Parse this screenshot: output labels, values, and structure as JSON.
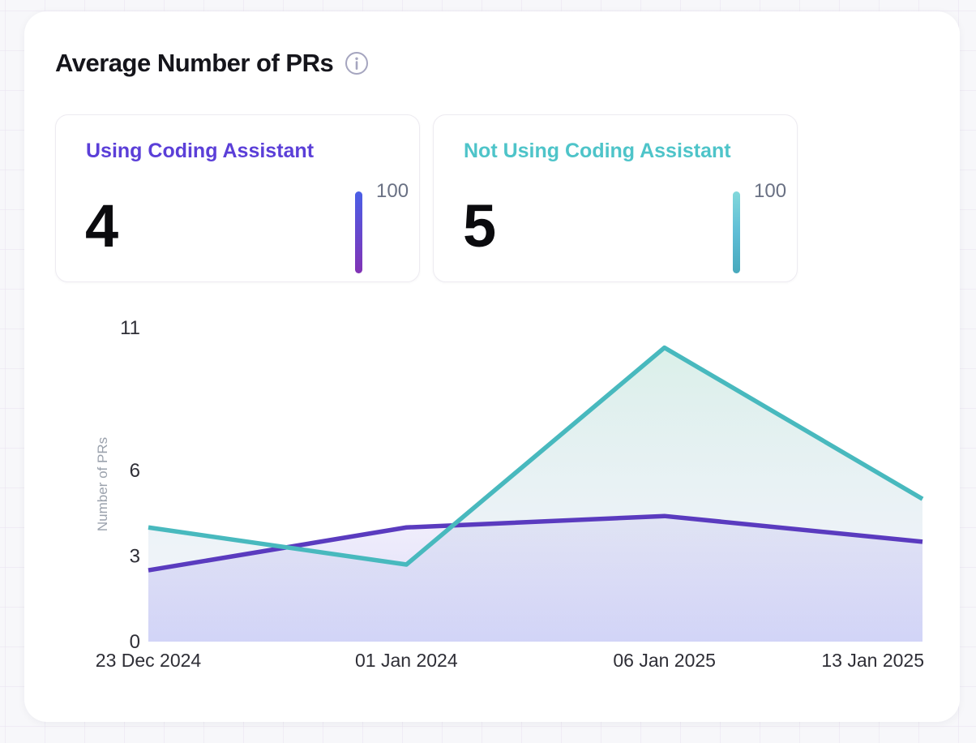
{
  "header": {
    "title": "Average Number of PRs"
  },
  "stats": [
    {
      "label": "Using Coding Assistant",
      "value": "4",
      "bar_label": "100",
      "accent": "#5B3FD8",
      "bar_gradient": [
        "#4A5FE6",
        "#8233B5"
      ]
    },
    {
      "label": "Not Using Coding Assistant",
      "value": "5",
      "bar_label": "100",
      "accent": "#4EC4C9",
      "bar_gradient": [
        "#82D8DB",
        "#5FBDD6",
        "#48A9BC"
      ]
    }
  ],
  "chart_data": {
    "type": "area",
    "x": [
      "23 Dec 2024",
      "01 Jan 2024",
      "06 Jan 2025",
      "13 Jan 2025"
    ],
    "series": [
      {
        "name": "Using Coding Assistant",
        "color": "#5A3BBF",
        "values": [
          2.5,
          4,
          4.4,
          3.5
        ]
      },
      {
        "name": "Not Using Coding Assistant",
        "color": "#48B9BE",
        "values": [
          4,
          2.7,
          10.3,
          5
        ]
      }
    ],
    "title": "Average Number of PRs",
    "xlabel": "",
    "ylabel": "Number of PRs",
    "yticks": [
      0,
      3,
      6,
      11
    ],
    "ylim": [
      0,
      11
    ],
    "grid": false,
    "legend": "none"
  }
}
